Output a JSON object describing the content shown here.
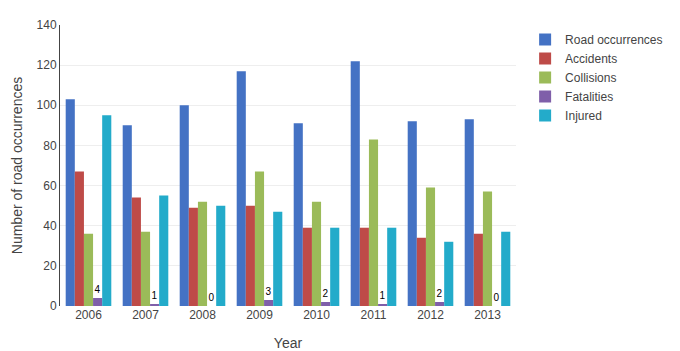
{
  "chart_data": {
    "type": "bar",
    "xlabel": "Year",
    "ylabel": "Number of road occurrences",
    "categories": [
      "2006",
      "2007",
      "2008",
      "2009",
      "2010",
      "2011",
      "2012",
      "2013"
    ],
    "series": [
      {
        "name": "Road occurrences",
        "color": "#4472C4",
        "values": [
          103,
          90,
          100,
          117,
          91,
          122,
          92,
          93
        ]
      },
      {
        "name": "Accidents",
        "color": "#BE4B48",
        "values": [
          67,
          54,
          49,
          50,
          39,
          39,
          34,
          36
        ]
      },
      {
        "name": "Collisions",
        "color": "#9BBB59",
        "values": [
          36,
          37,
          52,
          67,
          52,
          83,
          59,
          57
        ]
      },
      {
        "name": "Fatalities",
        "color": "#7F5FA9",
        "values": [
          4,
          1,
          0,
          3,
          2,
          1,
          2,
          0
        ],
        "data_labels": true
      },
      {
        "name": "Injured",
        "color": "#23ABCA",
        "values": [
          95,
          55,
          50,
          47,
          39,
          39,
          32,
          37
        ]
      }
    ],
    "ylim": [
      0,
      140
    ],
    "yticks": [
      0,
      20,
      40,
      60,
      80,
      100,
      120,
      140
    ],
    "grid": true,
    "legend": "upper right"
  }
}
